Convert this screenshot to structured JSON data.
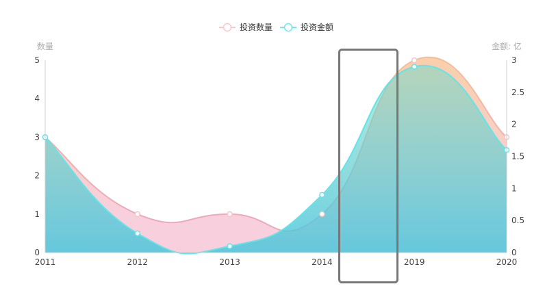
{
  "chart_data": {
    "type": "area",
    "categories": [
      "2011",
      "2012",
      "2013",
      "2014",
      "2019",
      "2020"
    ],
    "series": [
      {
        "name": "投资数量",
        "axis": "left",
        "values": [
          3,
          1,
          1,
          1,
          5,
          3
        ],
        "color": "#f5bf93",
        "low_color": "#f2a7bd"
      },
      {
        "name": "投资金额",
        "axis": "right",
        "values": [
          1.8,
          0.3,
          0.1,
          0.9,
          2.9,
          1.6
        ],
        "color": "#5ee6ec"
      }
    ],
    "y_left": {
      "label": "数量",
      "range": [
        0,
        5
      ],
      "ticks": [
        "0",
        "1",
        "2",
        "3",
        "4",
        "5"
      ]
    },
    "y_right": {
      "label": "金额: 亿",
      "range": [
        0,
        3
      ],
      "ticks": [
        "0",
        "0.5",
        "1",
        "1.5",
        "2",
        "2.5",
        "3"
      ]
    },
    "smooth": true,
    "grid": false,
    "legend": "top-center",
    "highlight_box_color": "#777777"
  }
}
